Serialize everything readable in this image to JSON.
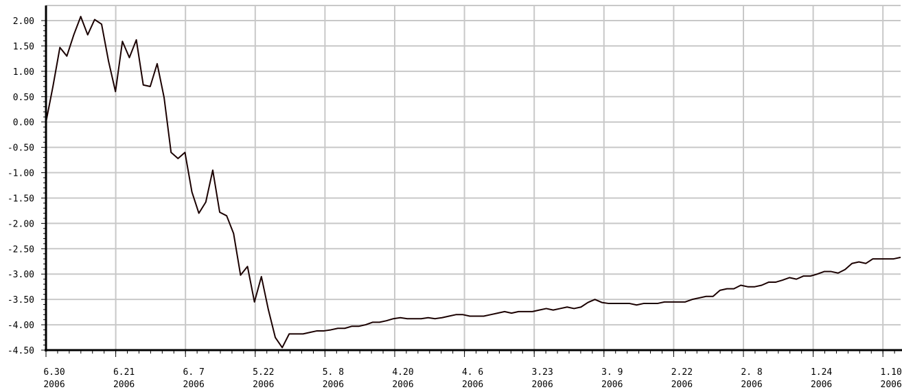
{
  "chart_data": {
    "type": "line",
    "title": "",
    "xlabel": "",
    "ylabel": "",
    "ylim": [
      -4.5,
      2.0
    ],
    "yticks": [
      "2.00",
      "1.50",
      "1.00",
      "0.50",
      "0.00",
      "-0.50",
      "-1.00",
      "-1.50",
      "-2.00",
      "-2.50",
      "-3.00",
      "-3.50",
      "-4.00",
      "-4.50"
    ],
    "xtick_labels": [
      {
        "line1": "6.30",
        "line2": "2006"
      },
      {
        "line1": "6.21",
        "line2": "2006"
      },
      {
        "line1": "6. 7",
        "line2": "2006"
      },
      {
        "line1": "5.22",
        "line2": "2006"
      },
      {
        "line1": "5. 8",
        "line2": "2006"
      },
      {
        "line1": "4.20",
        "line2": "2006"
      },
      {
        "line1": "4. 6",
        "line2": "2006"
      },
      {
        "line1": "3.23",
        "line2": "2006"
      },
      {
        "line1": "3. 9",
        "line2": "2006"
      },
      {
        "line1": "2.22",
        "line2": "2006"
      },
      {
        "line1": "2. 8",
        "line2": "2006"
      },
      {
        "line1": "1.24",
        "line2": "2006"
      },
      {
        "line1": "1.10",
        "line2": "2006"
      }
    ],
    "grid": true,
    "series_color": "#1a0000",
    "series": [
      {
        "values": [
          0.0,
          0.7,
          1.47,
          1.3,
          1.72,
          2.08,
          1.72,
          2.02,
          1.93,
          1.2,
          0.6,
          1.59,
          1.27,
          1.62,
          0.73,
          0.7,
          1.15,
          0.48,
          -0.6,
          -0.72,
          -0.6,
          -1.38,
          -1.8,
          -1.58,
          -0.95,
          -1.78,
          -1.85,
          -2.2,
          -3.02,
          -2.85,
          -3.55,
          -3.05,
          -3.7,
          -4.25,
          -4.45,
          -4.18,
          -4.18,
          -4.18,
          -4.15,
          -4.12,
          -4.12,
          -4.1,
          -4.07,
          -4.07,
          -4.03,
          -4.03,
          -4.0,
          -3.95,
          -3.95,
          -3.92,
          -3.88,
          -3.86,
          -3.88,
          -3.88,
          -3.88,
          -3.86,
          -3.88,
          -3.86,
          -3.83,
          -3.8,
          -3.8,
          -3.83,
          -3.83,
          -3.83,
          -3.8,
          -3.77,
          -3.74,
          -3.77,
          -3.74,
          -3.74,
          -3.74,
          -3.71,
          -3.68,
          -3.71,
          -3.68,
          -3.65,
          -3.68,
          -3.65,
          -3.56,
          -3.5,
          -3.56,
          -3.58,
          -3.58,
          -3.58,
          -3.58,
          -3.61,
          -3.58,
          -3.58,
          -3.58,
          -3.55,
          -3.55,
          -3.55,
          -3.55,
          -3.5,
          -3.47,
          -3.44,
          -3.44,
          -3.32,
          -3.29,
          -3.29,
          -3.22,
          -3.25,
          -3.25,
          -3.22,
          -3.16,
          -3.16,
          -3.12,
          -3.07,
          -3.1,
          -3.04,
          -3.04,
          -3.0,
          -2.95,
          -2.95,
          -2.98,
          -2.91,
          -2.79,
          -2.76,
          -2.79,
          -2.7,
          -2.7,
          -2.7,
          -2.7,
          -2.67
        ]
      }
    ]
  }
}
